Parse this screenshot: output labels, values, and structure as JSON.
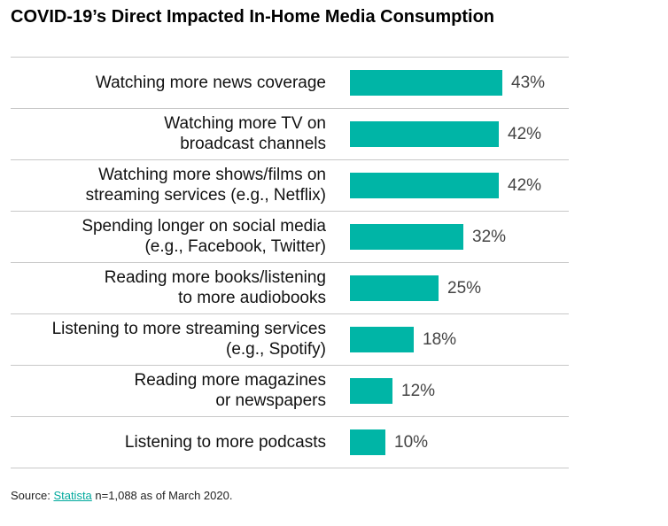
{
  "chart_data": {
    "type": "hbar",
    "title": "COVID-19’s Direct Impacted In-Home Media Consumption",
    "categories": [
      "Watching more news coverage",
      "Watching more TV on\nbroadcast channels",
      "Watching more shows/films on\nstreaming services (e.g., Netflix)",
      "Spending longer on social media\n(e.g., Facebook, Twitter)",
      "Reading more books/listening\nto more audiobooks",
      "Listening to more streaming services\n(e.g., Spotify)",
      "Reading more magazines\nor newspapers",
      "Listening to more podcasts"
    ],
    "values": [
      43,
      42,
      42,
      32,
      25,
      18,
      12,
      10
    ],
    "value_labels": [
      "43%",
      "42%",
      "42%",
      "32%",
      "25%",
      "18%",
      "12%",
      "10%"
    ],
    "color": "#00b5a6"
  },
  "source": {
    "prefix": "Source:",
    "link": "Statista",
    "suffix": "n=1,088 as of March 2020."
  }
}
